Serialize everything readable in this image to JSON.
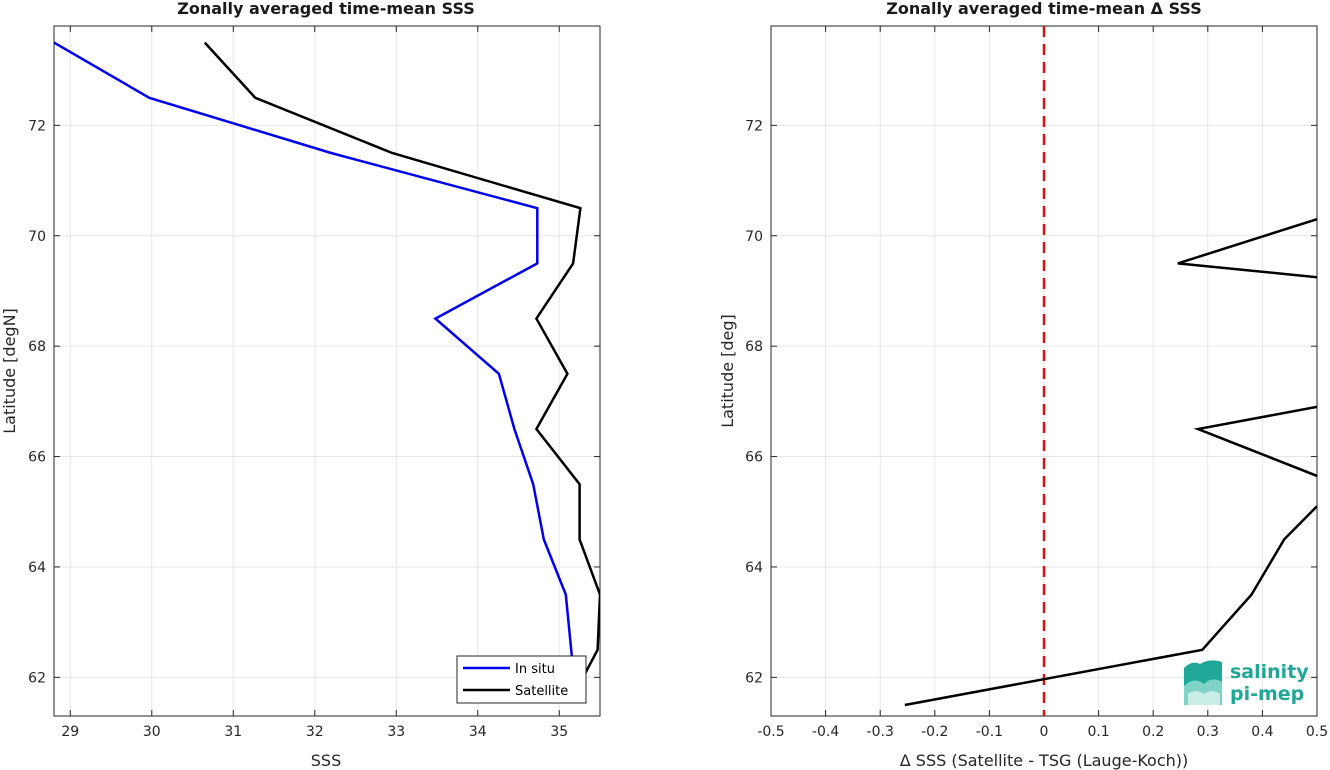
{
  "chart_data": [
    {
      "type": "line",
      "title": "Zonally averaged time-mean SSS",
      "xlabel": "SSS",
      "ylabel": "Latitude [degN]",
      "xlim": [
        28.8,
        35.5
      ],
      "ylim": [
        61.3,
        73.8
      ],
      "xticks": [
        "29",
        "30",
        "31",
        "32",
        "33",
        "34",
        "35"
      ],
      "yticks": [
        "62",
        "64",
        "66",
        "68",
        "70",
        "72"
      ],
      "grid": true,
      "legend_position": "bottom-right",
      "series": [
        {
          "name": "In situ",
          "color": "#0000ee",
          "x": [
            35.18,
            35.08,
            34.81,
            34.68,
            34.45,
            34.26,
            33.48,
            34.73,
            34.73,
            32.2,
            29.97,
            28.8
          ],
          "y": [
            62.0,
            63.5,
            64.5,
            65.5,
            66.5,
            67.5,
            68.5,
            69.5,
            70.5,
            71.5,
            72.5,
            73.5
          ]
        },
        {
          "name": "Satellite",
          "color": "#000000",
          "x": [
            35.22,
            35.47,
            35.5,
            35.25,
            35.25,
            34.72,
            35.1,
            34.72,
            35.17,
            35.26,
            32.95,
            31.27,
            30.65
          ],
          "y": [
            61.8,
            62.5,
            63.5,
            64.5,
            65.5,
            66.5,
            67.5,
            68.5,
            69.5,
            70.5,
            71.5,
            72.5,
            73.5
          ]
        }
      ]
    },
    {
      "type": "line",
      "title": "Zonally averaged time-mean Δ SSS",
      "xlabel": "Δ SSS (Satellite - TSG (Lauge-Koch))",
      "ylabel": "Latitude [deg]",
      "xlim": [
        -0.5,
        0.5
      ],
      "ylim": [
        61.3,
        73.8
      ],
      "xticks": [
        "-0.5",
        "-0.4",
        "-0.3",
        "-0.2",
        "-0.1",
        "0",
        "0.1",
        "0.2",
        "0.3",
        "0.4",
        "0.5"
      ],
      "yticks": [
        "62",
        "64",
        "66",
        "68",
        "70",
        "72"
      ],
      "grid": true,
      "reference_line": {
        "x": 0,
        "color": "#dd1111",
        "style": "dashed"
      },
      "series": [
        {
          "color": "#000000",
          "segments": [
            {
              "x": [
                -0.255,
                0.29,
                0.38,
                0.44,
                0.5
              ],
              "y": [
                61.5,
                62.5,
                63.5,
                64.5,
                65.1
              ]
            },
            {
              "x": [
                0.5,
                0.282,
                0.5
              ],
              "y": [
                65.65,
                66.5,
                66.9
              ]
            },
            {
              "x": [
                0.5,
                0.245,
                0.5
              ],
              "y": [
                69.25,
                69.5,
                70.3
              ]
            }
          ]
        }
      ]
    }
  ],
  "logo": {
    "line1": "salinity",
    "line2": "pi-mep",
    "color": "#1fa898"
  }
}
